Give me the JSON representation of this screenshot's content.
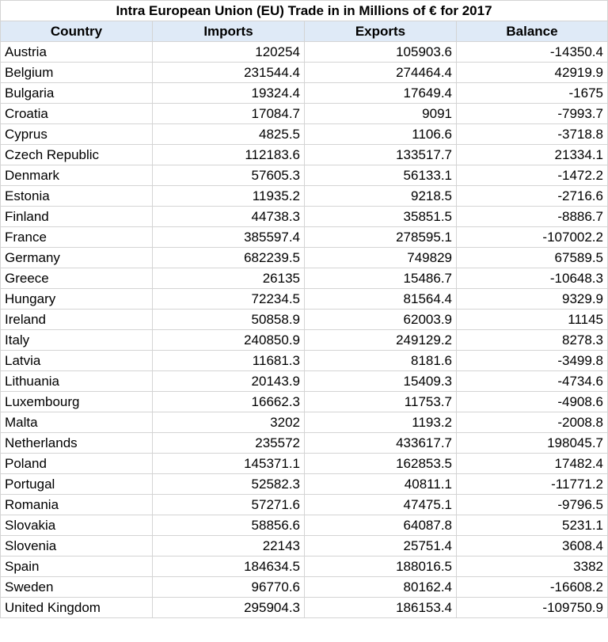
{
  "chart_data": {
    "type": "table",
    "title": "Intra European Union (EU) Trade in in Millions of € for 2017",
    "columns": [
      "Country",
      "Imports",
      "Exports",
      "Balance"
    ],
    "rows": [
      [
        "Austria",
        "120254",
        "105903.6",
        "-14350.4"
      ],
      [
        "Belgium",
        "231544.4",
        "274464.4",
        "42919.9"
      ],
      [
        "Bulgaria",
        "19324.4",
        "17649.4",
        "-1675"
      ],
      [
        "Croatia",
        "17084.7",
        "9091",
        "-7993.7"
      ],
      [
        "Cyprus",
        "4825.5",
        "1106.6",
        "-3718.8"
      ],
      [
        "Czech Republic",
        "112183.6",
        "133517.7",
        "21334.1"
      ],
      [
        "Denmark",
        "57605.3",
        "56133.1",
        "-1472.2"
      ],
      [
        "Estonia",
        "11935.2",
        "9218.5",
        "-2716.6"
      ],
      [
        "Finland",
        "44738.3",
        "35851.5",
        "-8886.7"
      ],
      [
        "France",
        "385597.4",
        "278595.1",
        "-107002.2"
      ],
      [
        "Germany",
        "682239.5",
        "749829",
        "67589.5"
      ],
      [
        "Greece",
        "26135",
        "15486.7",
        "-10648.3"
      ],
      [
        "Hungary",
        "72234.5",
        "81564.4",
        "9329.9"
      ],
      [
        "Ireland",
        "50858.9",
        "62003.9",
        "11145"
      ],
      [
        "Italy",
        "240850.9",
        "249129.2",
        "8278.3"
      ],
      [
        "Latvia",
        "11681.3",
        "8181.6",
        "-3499.8"
      ],
      [
        "Lithuania",
        "20143.9",
        "15409.3",
        "-4734.6"
      ],
      [
        "Luxembourg",
        "16662.3",
        "11753.7",
        "-4908.6"
      ],
      [
        "Malta",
        "3202",
        "1193.2",
        "-2008.8"
      ],
      [
        "Netherlands",
        "235572",
        "433617.7",
        "198045.7"
      ],
      [
        "Poland",
        "145371.1",
        "162853.5",
        "17482.4"
      ],
      [
        "Portugal",
        "52582.3",
        "40811.1",
        "-11771.2"
      ],
      [
        "Romania",
        "57271.6",
        "47475.1",
        "-9796.5"
      ],
      [
        "Slovakia",
        "58856.6",
        "64087.8",
        "5231.1"
      ],
      [
        "Slovenia",
        "22143",
        "25751.4",
        "3608.4"
      ],
      [
        "Spain",
        "184634.5",
        "188016.5",
        "3382"
      ],
      [
        "Sweden",
        "96770.6",
        "80162.4",
        "-16608.2"
      ],
      [
        "United Kingdom",
        "295904.3",
        "186153.4",
        "-109750.9"
      ]
    ]
  },
  "colors": {
    "header_background": "#dfeaf7",
    "grid_line": "#d4d4d4"
  }
}
